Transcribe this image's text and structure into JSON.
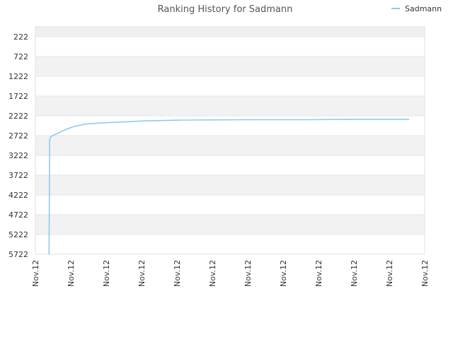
{
  "chart_data": {
    "type": "line",
    "title": "Ranking History for Sadmann",
    "y_inverted": true,
    "ylim": [
      222,
      5722
    ],
    "y_ticks": [
      "222",
      "722",
      "1222",
      "1722",
      "2222",
      "2722",
      "3222",
      "3722",
      "4222",
      "4722",
      "5222",
      "5722"
    ],
    "x_ticks": [
      "Nov.12",
      "Nov.12",
      "Nov.12",
      "Nov.12",
      "Nov.12",
      "Nov.12",
      "Nov.12",
      "Nov.12",
      "Nov.12",
      "Nov.12",
      "Nov.12",
      "Nov.12"
    ],
    "grid": true,
    "legend_position": "top-right",
    "series": [
      {
        "name": "Sadmann",
        "color": "#90c8f0",
        "x": [
          0.035,
          0.036,
          0.0365,
          0.038,
          0.04,
          0.045,
          0.06,
          0.08,
          0.1,
          0.13,
          0.17,
          0.22,
          0.28,
          0.38,
          0.55,
          0.7,
          0.82,
          0.96
        ],
        "values": [
          5722,
          4100,
          2830,
          2790,
          2740,
          2720,
          2650,
          2560,
          2490,
          2430,
          2400,
          2380,
          2350,
          2330,
          2320,
          2320,
          2310,
          2310
        ]
      }
    ]
  }
}
